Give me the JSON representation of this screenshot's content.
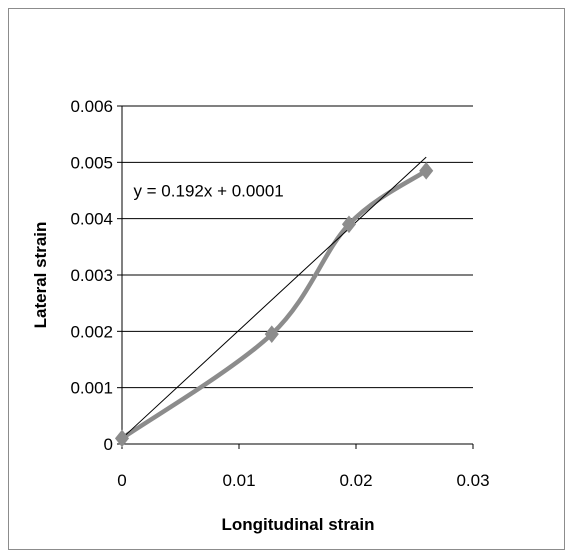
{
  "chart_data": {
    "type": "scatter",
    "title": "",
    "xlabel": "Longitudinal strain",
    "ylabel": "Lateral strain",
    "xlim": [
      0,
      0.03
    ],
    "ylim": [
      0,
      0.006
    ],
    "xticks": [
      0,
      0.01,
      0.02,
      0.03
    ],
    "xtick_labels": [
      "0",
      "0.01",
      "0.02",
      "0.03"
    ],
    "yticks": [
      0,
      0.001,
      0.002,
      0.003,
      0.004,
      0.005,
      0.006
    ],
    "ytick_labels": [
      "0",
      "0.001",
      "0.002",
      "0.003",
      "0.004",
      "0.005",
      "0.006"
    ],
    "grid": "horizontal",
    "legend": "none",
    "series": [
      {
        "x": [
          0,
          0.0128,
          0.0194,
          0.026
        ],
        "y": [
          0.0001,
          0.00195,
          0.0039,
          0.00485
        ],
        "marker": "diamond",
        "line": "smooth",
        "color": "#8c8c8c"
      }
    ],
    "trendline": {
      "type": "linear",
      "slope": 0.192,
      "intercept": 0.0001,
      "x_range": [
        0,
        0.026
      ],
      "color": "#000000"
    },
    "annotations": [
      {
        "text": "y = 0.192x + 0.0001",
        "x": 0.0032,
        "y": 0.0045
      }
    ]
  }
}
